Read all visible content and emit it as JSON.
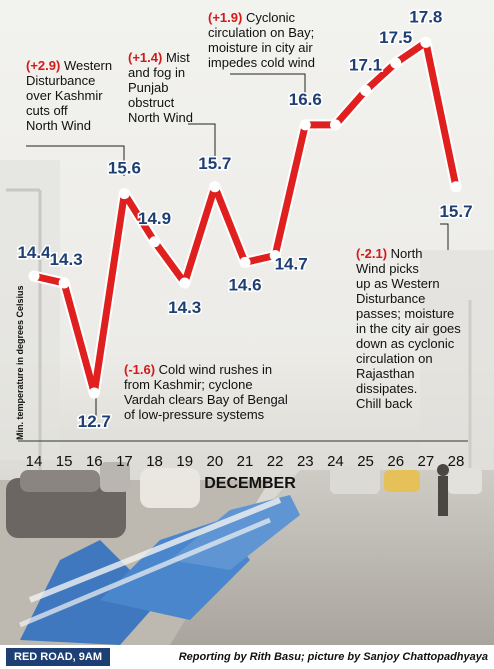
{
  "chart_data": {
    "type": "line",
    "x": [
      14,
      15,
      16,
      17,
      18,
      19,
      20,
      21,
      22,
      23,
      24,
      25,
      26,
      27,
      28
    ],
    "values": [
      14.4,
      14.3,
      12.7,
      15.6,
      14.9,
      14.3,
      15.7,
      14.6,
      14.7,
      16.6,
      16.6,
      17.1,
      17.5,
      17.8,
      15.7
    ],
    "data_labels": [
      "14.4",
      "14.3",
      "12.7",
      "15.6",
      "14.9",
      "14.3",
      "15.7",
      "14.6",
      "14.7",
      "16.6",
      "",
      "17.1",
      "17.5",
      "17.8",
      "15.7"
    ],
    "xlabel": "DECEMBER",
    "ylabel": "Min. temperature in degrees Celsius",
    "grid": false,
    "line_color": "#e01f1f",
    "label_color": "#1e3f73",
    "annotations": [
      {
        "x": 16,
        "change": "(-1.6)",
        "lines": [
          "Cold wind rushes in",
          "from Kashmir; cyclone",
          "Vardah clears Bay of Bengal",
          "of low-pressure systems"
        ]
      },
      {
        "x": 17,
        "change": "(+2.9)",
        "lines": [
          "Western",
          "Disturbance",
          "over Kashmir",
          "cuts off",
          "North Wind"
        ]
      },
      {
        "x": 20,
        "change": "(+1.4)",
        "lines": [
          "Mist",
          "and fog in",
          "Punjab",
          "obstruct",
          "North Wind"
        ]
      },
      {
        "x": 23,
        "change": "(+1.9)",
        "lines": [
          "Cyclonic",
          "circulation on Bay;",
          "moisture in city air",
          "impedes cold wind"
        ]
      },
      {
        "x": 28,
        "change": "(-2.1)",
        "lines": [
          "North",
          "Wind picks",
          "up as Western",
          "Disturbance",
          "passes; moisture",
          "in the city air goes",
          "down as cyclonic",
          "circulation on",
          "Rajasthan",
          "dissipates.",
          "Chill back"
        ]
      }
    ]
  },
  "footer": {
    "location": "RED ROAD, 9AM",
    "credit": "Reporting by Rith Basu; picture by Sanjoy Chattopadhyaya"
  },
  "colors": {
    "accent_red": "#e01f1f",
    "navy": "#1e3f73",
    "change_red": "#d11a1a",
    "badge_bg": "#1e3f73"
  },
  "background_photo": {
    "description_icon": "foggy-road-photo"
  }
}
